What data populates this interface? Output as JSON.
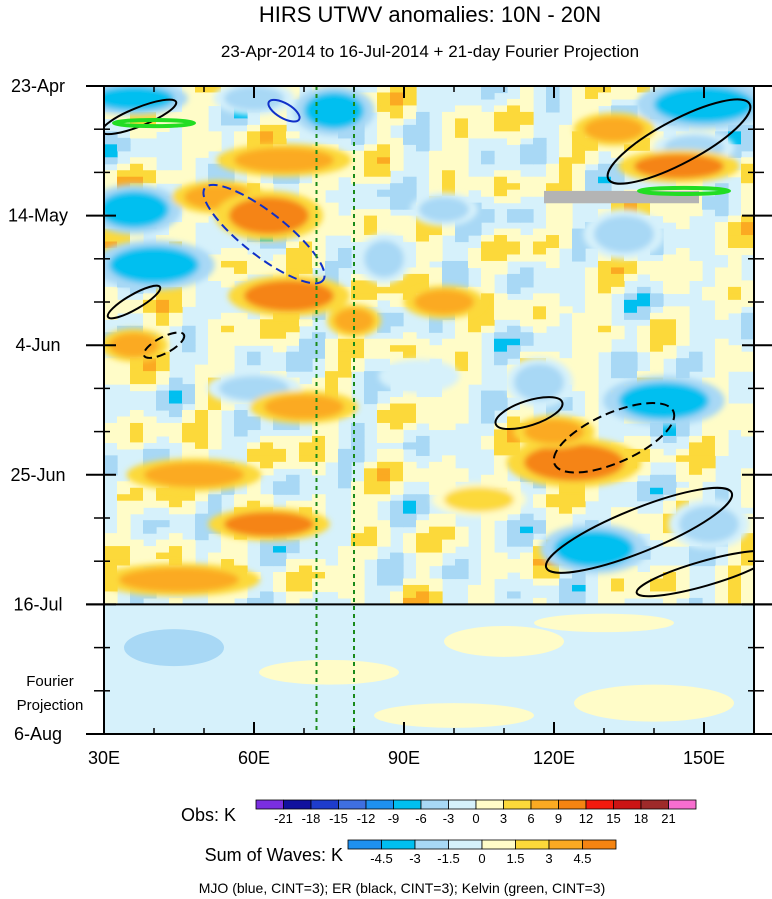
{
  "chart_data": {
    "type": "heatmap",
    "title": "HIRS UTWV anomalies: 10N - 20N",
    "subtitle": "23-Apr-2014 to 16-Jul-2014 + 21-day Fourier Projection",
    "x_axis": {
      "range": [
        30,
        160
      ],
      "unit": "degrees longitude",
      "ticks": [
        {
          "value": 30,
          "label": "30E"
        },
        {
          "value": 60,
          "label": "60E"
        },
        {
          "value": 90,
          "label": "90E"
        },
        {
          "value": 120,
          "label": "120E"
        },
        {
          "value": 150,
          "label": "150E"
        }
      ]
    },
    "y_axis": {
      "range_days": [
        0,
        105
      ],
      "orientation": "time increases downward",
      "ticks": [
        {
          "day": 0,
          "label": "23-Apr"
        },
        {
          "day": 21,
          "label": "14-May"
        },
        {
          "day": 42,
          "label": "4-Jun"
        },
        {
          "day": 63,
          "label": "25-Jun"
        },
        {
          "day": 84,
          "label": "16-Jul"
        },
        {
          "day": 105,
          "label": "6-Aug"
        }
      ]
    },
    "observation_end_day": 84,
    "projection_label": [
      "Fourier",
      "Projection"
    ],
    "reference_longitudes": [
      72.5,
      80
    ],
    "obs_legend": {
      "title": "Obs: K",
      "levels": [
        -21,
        -18,
        -15,
        -12,
        -9,
        -6,
        -3,
        0,
        3,
        6,
        9,
        12,
        15,
        18,
        21
      ],
      "colors": [
        "#7a2ee0",
        "#11119e",
        "#1e3ccc",
        "#3f6fe0",
        "#1e90f0",
        "#00bff0",
        "#a8d8f5",
        "#d6f1fb",
        "#fffcc8",
        "#fcd93a",
        "#fbaa22",
        "#f58412",
        "#f41a0e",
        "#cc1414",
        "#9e2a2a",
        "#f76ecf"
      ]
    },
    "wave_legend": {
      "title": "Sum of Waves: K",
      "levels": [
        -4.5,
        -3,
        -1.5,
        0,
        1.5,
        3,
        4.5
      ],
      "colors": [
        "#1e90f0",
        "#00bff0",
        "#a8d8f5",
        "#d6f1fb",
        "#fffcc8",
        "#fcd93a",
        "#fbaa22",
        "#f58412"
      ]
    },
    "footer": "MJO (blue, CINT=3); ER (black, CINT=3); Kelvin (green, CINT=3)",
    "anomaly_features": [
      {
        "sign": "negative",
        "lon": 36,
        "day": 2,
        "lon_radius": 8,
        "day_radius": 2,
        "value": -9
      },
      {
        "sign": "negative",
        "lon": 60,
        "day": 2,
        "lon_radius": 6,
        "day_radius": 2,
        "value": -6
      },
      {
        "sign": "negative",
        "lon": 76,
        "day": 4,
        "lon_radius": 6,
        "day_radius": 3,
        "value": -9
      },
      {
        "sign": "negative",
        "lon": 150,
        "day": 3,
        "lon_radius": 10,
        "day_radius": 3,
        "value": -9
      },
      {
        "sign": "negative",
        "lon": 148,
        "day": 10,
        "lon_radius": 6,
        "day_radius": 2,
        "value": -6
      },
      {
        "sign": "negative",
        "lon": 36,
        "day": 20,
        "lon_radius": 7,
        "day_radius": 3,
        "value": -9
      },
      {
        "sign": "negative",
        "lon": 40,
        "day": 29,
        "lon_radius": 9,
        "day_radius": 3,
        "value": -9
      },
      {
        "sign": "negative",
        "lon": 86,
        "day": 28,
        "lon_radius": 4,
        "day_radius": 3,
        "value": -6
      },
      {
        "sign": "negative",
        "lon": 98,
        "day": 20,
        "lon_radius": 5,
        "day_radius": 2,
        "value": -6
      },
      {
        "sign": "negative",
        "lon": 134,
        "day": 24,
        "lon_radius": 6,
        "day_radius": 3,
        "value": -6
      },
      {
        "sign": "negative",
        "lon": 60,
        "day": 49,
        "lon_radius": 7,
        "day_radius": 2,
        "value": -6
      },
      {
        "sign": "negative",
        "lon": 117,
        "day": 48,
        "lon_radius": 5,
        "day_radius": 3,
        "value": -6
      },
      {
        "sign": "negative",
        "lon": 142,
        "day": 51,
        "lon_radius": 9,
        "day_radius": 3,
        "value": -9
      },
      {
        "sign": "negative",
        "lon": 93,
        "day": 47,
        "lon_radius": 6,
        "day_radius": 2,
        "value": -3
      },
      {
        "sign": "negative",
        "lon": 128,
        "day": 75,
        "lon_radius": 8,
        "day_radius": 3,
        "value": -9
      },
      {
        "sign": "negative",
        "lon": 151,
        "day": 71,
        "lon_radius": 6,
        "day_radius": 3,
        "value": -6
      },
      {
        "sign": "positive",
        "lon": 66,
        "day": 12,
        "lon_radius": 10,
        "day_radius": 2,
        "value": 6
      },
      {
        "sign": "positive",
        "lon": 53,
        "day": 18,
        "lon_radius": 7,
        "day_radius": 2,
        "value": 6
      },
      {
        "sign": "positive",
        "lon": 63,
        "day": 21,
        "lon_radius": 8,
        "day_radius": 3,
        "value": 9
      },
      {
        "sign": "positive",
        "lon": 67,
        "day": 34,
        "lon_radius": 9,
        "day_radius": 2.5,
        "value": 9
      },
      {
        "sign": "positive",
        "lon": 80,
        "day": 38,
        "lon_radius": 4,
        "day_radius": 2,
        "value": 6
      },
      {
        "sign": "positive",
        "lon": 98,
        "day": 35,
        "lon_radius": 6,
        "day_radius": 2,
        "value": 6
      },
      {
        "sign": "positive",
        "lon": 145,
        "day": 13,
        "lon_radius": 9,
        "day_radius": 2,
        "value": 9
      },
      {
        "sign": "positive",
        "lon": 132,
        "day": 7,
        "lon_radius": 6,
        "day_radius": 2,
        "value": 6
      },
      {
        "sign": "positive",
        "lon": 36,
        "day": 42,
        "lon_radius": 5,
        "day_radius": 2,
        "value": 6
      },
      {
        "sign": "positive",
        "lon": 70,
        "day": 52,
        "lon_radius": 8,
        "day_radius": 2,
        "value": 6
      },
      {
        "sign": "positive",
        "lon": 124,
        "day": 61,
        "lon_radius": 10,
        "day_radius": 3,
        "value": 9
      },
      {
        "sign": "positive",
        "lon": 48,
        "day": 63,
        "lon_radius": 10,
        "day_radius": 2,
        "value": 6
      },
      {
        "sign": "positive",
        "lon": 63,
        "day": 71,
        "lon_radius": 9,
        "day_radius": 2,
        "value": 9
      },
      {
        "sign": "positive",
        "lon": 45,
        "day": 80,
        "lon_radius": 12,
        "day_radius": 2,
        "value": 6
      },
      {
        "sign": "positive",
        "lon": 120,
        "day": 56,
        "lon_radius": 6,
        "day_radius": 2,
        "value": 6
      },
      {
        "sign": "positive",
        "lon": 105,
        "day": 67,
        "lon_radius": 7,
        "day_radius": 2,
        "value": 3
      }
    ],
    "wave_contours": [
      {
        "wave": "ER",
        "sign": "positive",
        "lon": 145,
        "day": 9,
        "lon_radius": 16,
        "day_radius": 3.5,
        "angle_deg": -28
      },
      {
        "wave": "ER",
        "sign": "positive",
        "lon": 37,
        "day": 5,
        "lon_radius": 8,
        "day_radius": 1.5,
        "angle_deg": -22
      },
      {
        "wave": "ER",
        "sign": "positive",
        "lon": 36,
        "day": 35,
        "lon_radius": 6,
        "day_radius": 1.2,
        "angle_deg": -30
      },
      {
        "wave": "ER",
        "sign": "positive",
        "lon": 115,
        "day": 53,
        "lon_radius": 7,
        "day_radius": 2,
        "angle_deg": -18
      },
      {
        "wave": "ER",
        "sign": "negative",
        "lon": 132,
        "day": 57,
        "lon_radius": 13,
        "day_radius": 4,
        "angle_deg": -24
      },
      {
        "wave": "ER",
        "sign": "negative",
        "lon": 42,
        "day": 42,
        "lon_radius": 4.5,
        "day_radius": 1.3,
        "angle_deg": -28
      },
      {
        "wave": "ER",
        "sign": "positive",
        "lon": 137,
        "day": 72,
        "lon_radius": 20,
        "day_radius": 3.5,
        "angle_deg": -22
      },
      {
        "wave": "ER",
        "sign": "positive",
        "lon": 150,
        "day": 79,
        "lon_radius": 14,
        "day_radius": 2,
        "angle_deg": -16
      },
      {
        "wave": "MJO",
        "sign": "negative",
        "lon": 62,
        "day": 24,
        "lon_radius": 15,
        "day_radius": 3.5,
        "angle_deg": 38
      },
      {
        "wave": "MJO",
        "sign": "positive",
        "lon": 66,
        "day": 4,
        "lon_radius": 3.5,
        "day_radius": 1.2,
        "angle_deg": 30
      },
      {
        "wave": "Kelvin",
        "sign": "positive",
        "lon": 40,
        "day": 6,
        "lon_radius": 8,
        "day_radius": 0.5,
        "angle_deg": 0
      },
      {
        "wave": "Kelvin",
        "sign": "positive",
        "lon": 146,
        "day": 17,
        "lon_radius": 9,
        "day_radius": 0.5,
        "angle_deg": 0
      }
    ],
    "missing_data_regions": [
      {
        "lon_range": [
          118,
          149
        ],
        "day_range": [
          17,
          19
        ]
      }
    ]
  }
}
